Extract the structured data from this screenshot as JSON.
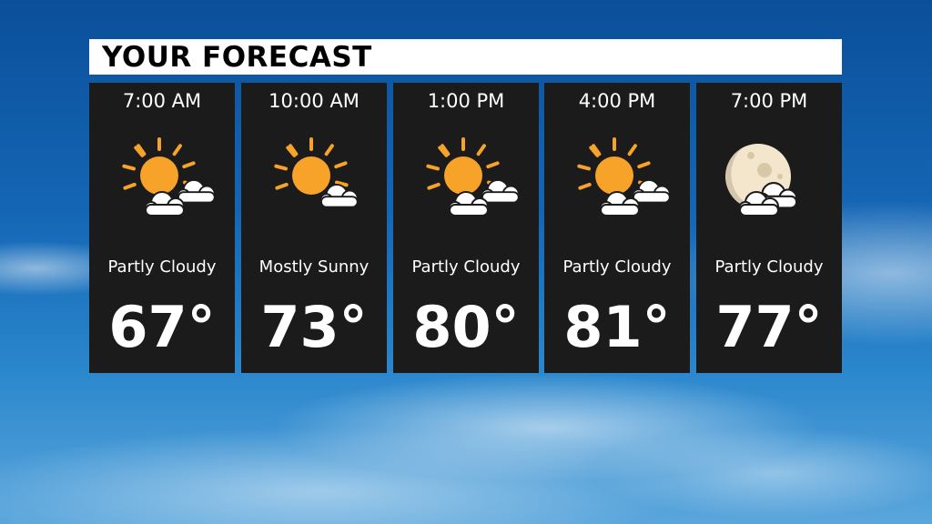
{
  "title": "YOUR FORECAST",
  "colors": {
    "sun": "#f7a228",
    "moon": "#f3e6cc",
    "cloud": "#ffffff",
    "card": "#1b1b1b"
  },
  "periods": [
    {
      "time": "7:00 AM",
      "icon": "partly-cloudy-day-icon",
      "condition": "Partly Cloudy",
      "temp": "67°"
    },
    {
      "time": "10:00 AM",
      "icon": "mostly-sunny-icon",
      "condition": "Mostly Sunny",
      "temp": "73°"
    },
    {
      "time": "1:00 PM",
      "icon": "partly-cloudy-day-icon",
      "condition": "Partly Cloudy",
      "temp": "80°"
    },
    {
      "time": "4:00 PM",
      "icon": "partly-cloudy-day-icon",
      "condition": "Partly Cloudy",
      "temp": "81°"
    },
    {
      "time": "7:00 PM",
      "icon": "partly-cloudy-night-icon",
      "condition": "Partly Cloudy",
      "temp": "77°"
    }
  ]
}
